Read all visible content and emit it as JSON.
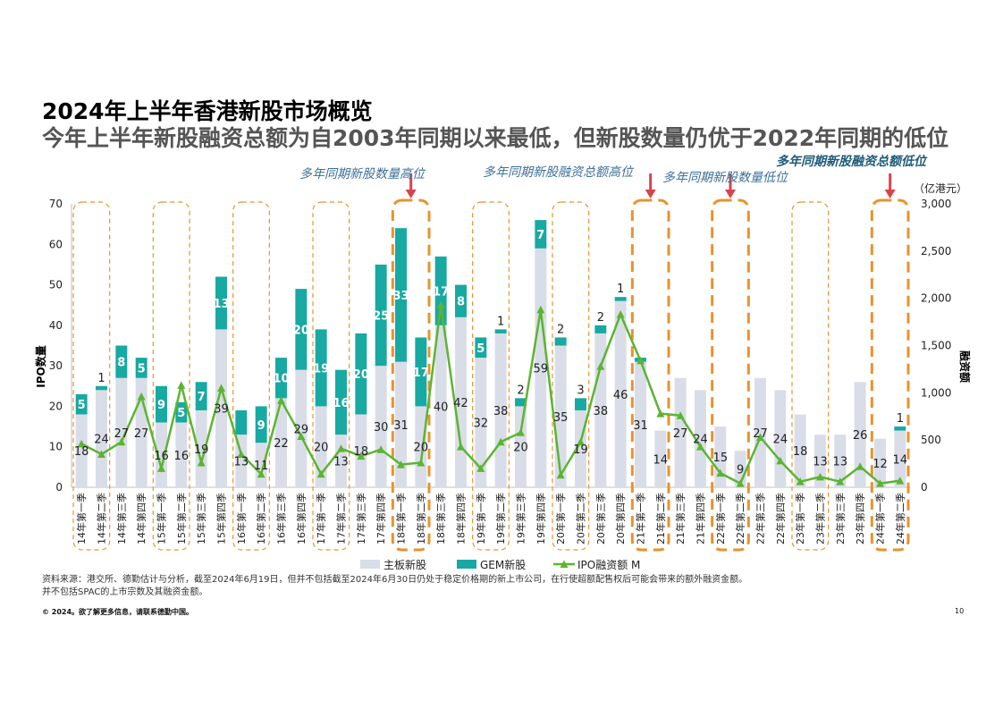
{
  "page": {
    "title": "2024年上半年香港新股市场概览",
    "subtitle": "今年上半年新股融资总额为自2003年同期以来最低，但新股数量仍优于2022年同期的低位",
    "source_line1": "资料来源：港交所、德勤估计与分析，截至2024年6月19日，但并不包括截至2024年6月30日仍处于稳定价格期的新上市公司，在行使超额配售权后可能会带来的额外融资金额。",
    "source_line2": "并不包括SPAC的上市宗数及其融资金额。",
    "copyright": "© 2024。欲了解更多信息，请联系德勤中国。",
    "page_number": "10"
  },
  "colors": {
    "main_board": "#d9dde8",
    "gem": "#17a9a2",
    "ipo_line": "#5bb530",
    "highlight_box": "#e8932b",
    "arrow": "#d9434b",
    "annotation_text": "#3d6f99",
    "annotation_low": "#1f5b7a"
  },
  "chart_data": {
    "type": "bar",
    "ylabel": "IPO数量",
    "y2label": "融资额",
    "y2unit": "（亿港元）",
    "ylim": [
      0,
      70
    ],
    "yticks": [
      0,
      10,
      20,
      30,
      40,
      50,
      60,
      70
    ],
    "y2lim": [
      0,
      3000
    ],
    "y2ticks": [
      "0",
      "500",
      "1,000",
      "1,500",
      "2,000",
      "2,500",
      "3,000"
    ],
    "categories": [
      "14年第一季",
      "14年第二季",
      "14年第三季",
      "14年第四季",
      "15年第一季",
      "15年第二季",
      "15年第三季",
      "15年第四季",
      "16年第一季",
      "16年第二季",
      "16年第三季",
      "16年第四季",
      "17年第一季",
      "17年第二季",
      "17年第三季",
      "17年第四季",
      "18年第一季",
      "18年第二季",
      "18年第三季",
      "18年第四季",
      "19年第一季",
      "19年第二季",
      "19年第三季",
      "19年第四季",
      "20年第一季",
      "20年第二季",
      "20年第三季",
      "20年第四季",
      "21年第一季",
      "21年第二季",
      "21年第三季",
      "21年第四季",
      "22年第一季",
      "22年第二季",
      "22年第三季",
      "22年第四季",
      "23年第一季",
      "23年第二季",
      "23年第三季",
      "23年第四季",
      "24年第一季",
      "24年第二季"
    ],
    "series": [
      {
        "name": "主板新股",
        "type": "bar",
        "values": [
          18,
          24,
          27,
          27,
          16,
          16,
          19,
          39,
          13,
          11,
          22,
          29,
          20,
          13,
          18,
          30,
          31,
          20,
          40,
          42,
          32,
          38,
          20,
          59,
          35,
          19,
          38,
          46,
          31,
          14,
          27,
          24,
          15,
          9,
          27,
          24,
          18,
          13,
          13,
          26,
          12,
          14
        ]
      },
      {
        "name": "GEM新股",
        "type": "bar",
        "values": [
          5,
          1,
          8,
          5,
          9,
          5,
          7,
          13,
          6,
          9,
          10,
          20,
          19,
          16,
          20,
          25,
          33,
          17,
          17,
          8,
          5,
          1,
          2,
          7,
          2,
          3,
          2,
          1,
          1,
          0,
          0,
          0,
          0,
          0,
          0,
          0,
          0,
          0,
          0,
          0,
          0,
          1
        ]
      },
      {
        "name": "IPO融资额 M",
        "type": "line",
        "axis": "right",
        "values": [
          460,
          350,
          480,
          960,
          200,
          1080,
          260,
          1050,
          350,
          140,
          920,
          540,
          140,
          410,
          330,
          400,
          240,
          260,
          1930,
          430,
          200,
          480,
          580,
          1880,
          130,
          480,
          1280,
          1830,
          1340,
          780,
          760,
          430,
          150,
          40,
          530,
          280,
          60,
          110,
          60,
          220,
          40,
          70
        ]
      }
    ],
    "bar_labels_main": [
      "18",
      "24",
      "27",
      "27",
      "16",
      "16",
      "19",
      "39",
      "13",
      "11",
      "22",
      "29",
      "20",
      "13",
      "18",
      "30",
      "31",
      "20",
      "40",
      "42",
      "32",
      "38",
      "20",
      "59",
      "35",
      "19",
      "38",
      "46",
      "31",
      "14",
      "27",
      "24",
      "15",
      "9",
      "27",
      "24",
      "18",
      "13",
      "13",
      "26",
      "12",
      "14"
    ],
    "bar_labels_gem": [
      "5",
      "1",
      "8",
      "5",
      "9",
      "5",
      "7",
      "13",
      "",
      "9",
      "10",
      "20",
      "19",
      "16",
      "20",
      "25",
      "33",
      "17",
      "17",
      "8",
      "5",
      "1",
      "2",
      "7",
      "2",
      "3",
      "2",
      "1",
      "",
      "",
      "",
      "",
      "",
      "",
      "",
      "",
      "",
      "",
      "",
      "",
      "",
      "1"
    ],
    "highlight_groups": [
      {
        "start": 0,
        "end": 1,
        "style": "thin"
      },
      {
        "start": 4,
        "end": 5,
        "style": "thin"
      },
      {
        "start": 8,
        "end": 9,
        "style": "thin"
      },
      {
        "start": 12,
        "end": 13,
        "style": "thin"
      },
      {
        "start": 16,
        "end": 17,
        "style": "thick",
        "arrow": true
      },
      {
        "start": 20,
        "end": 21,
        "style": "thin"
      },
      {
        "start": 24,
        "end": 25,
        "style": "thin"
      },
      {
        "start": 28,
        "end": 29,
        "style": "thick",
        "arrow": true
      },
      {
        "start": 32,
        "end": 33,
        "style": "thick",
        "arrow": true
      },
      {
        "start": 36,
        "end": 37,
        "style": "thin"
      },
      {
        "start": 40,
        "end": 41,
        "style": "thick",
        "arrow": true
      }
    ],
    "annotations": [
      "多年同期新股数量高位",
      "多年同期新股融资总额高位",
      "多年同期新股数量低位",
      "多年同期新股融资总额低位"
    ]
  }
}
